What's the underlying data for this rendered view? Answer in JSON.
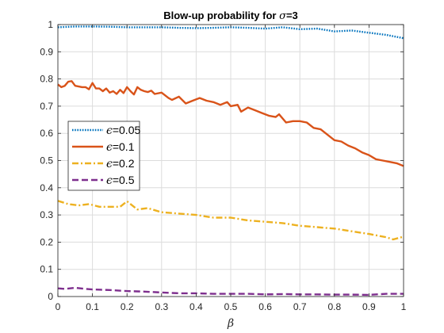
{
  "chart_data": {
    "type": "line",
    "title": {
      "prefix": "Blow-up probability for ",
      "symbol": "σ",
      "suffix": "=3"
    },
    "xlabel": "β",
    "ylabel": "",
    "xlim": [
      0,
      1
    ],
    "ylim": [
      0,
      1
    ],
    "x_ticks": [
      "0",
      "0.1",
      "0.2",
      "0.3",
      "0.4",
      "0.5",
      "0.6",
      "0.7",
      "0.8",
      "0.9",
      "1"
    ],
    "y_ticks": [
      "0",
      "0.1",
      "0.2",
      "0.3",
      "0.4",
      "0.5",
      "0.6",
      "0.7",
      "0.8",
      "0.9",
      "1"
    ],
    "grid": true,
    "legend_position": "left",
    "series": [
      {
        "name": "ϵ=0.05",
        "symbol": "ϵ",
        "value_label": "=0.05",
        "color": "#0072BD",
        "style": "dotted",
        "points": [
          [
            0,
            0.99
          ],
          [
            0.05,
            0.993
          ],
          [
            0.1,
            0.993
          ],
          [
            0.15,
            0.992
          ],
          [
            0.2,
            0.99
          ],
          [
            0.25,
            0.99
          ],
          [
            0.3,
            0.99
          ],
          [
            0.35,
            0.988
          ],
          [
            0.4,
            0.987
          ],
          [
            0.45,
            0.988
          ],
          [
            0.5,
            0.99
          ],
          [
            0.55,
            0.988
          ],
          [
            0.6,
            0.985
          ],
          [
            0.65,
            0.99
          ],
          [
            0.7,
            0.983
          ],
          [
            0.75,
            0.985
          ],
          [
            0.8,
            0.975
          ],
          [
            0.85,
            0.978
          ],
          [
            0.9,
            0.97
          ],
          [
            0.95,
            0.962
          ],
          [
            1,
            0.95
          ]
        ]
      },
      {
        "name": "ϵ=0.1",
        "symbol": "ϵ",
        "value_label": "=0.1",
        "color": "#D95319",
        "style": "solid",
        "points": [
          [
            0,
            0.78
          ],
          [
            0.01,
            0.77
          ],
          [
            0.02,
            0.775
          ],
          [
            0.03,
            0.79
          ],
          [
            0.04,
            0.792
          ],
          [
            0.05,
            0.775
          ],
          [
            0.07,
            0.77
          ],
          [
            0.08,
            0.77
          ],
          [
            0.09,
            0.762
          ],
          [
            0.1,
            0.785
          ],
          [
            0.11,
            0.765
          ],
          [
            0.12,
            0.765
          ],
          [
            0.13,
            0.755
          ],
          [
            0.14,
            0.765
          ],
          [
            0.15,
            0.75
          ],
          [
            0.16,
            0.755
          ],
          [
            0.17,
            0.745
          ],
          [
            0.18,
            0.76
          ],
          [
            0.19,
            0.748
          ],
          [
            0.2,
            0.77
          ],
          [
            0.21,
            0.755
          ],
          [
            0.22,
            0.743
          ],
          [
            0.23,
            0.77
          ],
          [
            0.24,
            0.76
          ],
          [
            0.25,
            0.755
          ],
          [
            0.26,
            0.752
          ],
          [
            0.27,
            0.757
          ],
          [
            0.28,
            0.745
          ],
          [
            0.3,
            0.75
          ],
          [
            0.32,
            0.73
          ],
          [
            0.33,
            0.723
          ],
          [
            0.35,
            0.735
          ],
          [
            0.37,
            0.71
          ],
          [
            0.39,
            0.72
          ],
          [
            0.41,
            0.73
          ],
          [
            0.43,
            0.72
          ],
          [
            0.45,
            0.715
          ],
          [
            0.47,
            0.705
          ],
          [
            0.49,
            0.715
          ],
          [
            0.5,
            0.7
          ],
          [
            0.52,
            0.705
          ],
          [
            0.53,
            0.68
          ],
          [
            0.55,
            0.695
          ],
          [
            0.57,
            0.685
          ],
          [
            0.59,
            0.675
          ],
          [
            0.61,
            0.665
          ],
          [
            0.63,
            0.66
          ],
          [
            0.64,
            0.67
          ],
          [
            0.66,
            0.64
          ],
          [
            0.68,
            0.645
          ],
          [
            0.7,
            0.645
          ],
          [
            0.72,
            0.64
          ],
          [
            0.74,
            0.62
          ],
          [
            0.76,
            0.615
          ],
          [
            0.78,
            0.595
          ],
          [
            0.8,
            0.575
          ],
          [
            0.82,
            0.57
          ],
          [
            0.84,
            0.555
          ],
          [
            0.86,
            0.545
          ],
          [
            0.88,
            0.53
          ],
          [
            0.9,
            0.52
          ],
          [
            0.92,
            0.505
          ],
          [
            0.94,
            0.5
          ],
          [
            0.96,
            0.495
          ],
          [
            0.98,
            0.49
          ],
          [
            1,
            0.48
          ]
        ]
      },
      {
        "name": "ϵ=0.2",
        "symbol": "ϵ",
        "value_label": "=0.2",
        "color": "#EDB120",
        "style": "dashdot",
        "points": [
          [
            0,
            0.352
          ],
          [
            0.03,
            0.34
          ],
          [
            0.06,
            0.335
          ],
          [
            0.09,
            0.34
          ],
          [
            0.12,
            0.33
          ],
          [
            0.15,
            0.33
          ],
          [
            0.18,
            0.33
          ],
          [
            0.2,
            0.35
          ],
          [
            0.23,
            0.32
          ],
          [
            0.26,
            0.325
          ],
          [
            0.3,
            0.31
          ],
          [
            0.35,
            0.305
          ],
          [
            0.4,
            0.3
          ],
          [
            0.45,
            0.29
          ],
          [
            0.5,
            0.29
          ],
          [
            0.55,
            0.28
          ],
          [
            0.6,
            0.275
          ],
          [
            0.65,
            0.27
          ],
          [
            0.7,
            0.26
          ],
          [
            0.75,
            0.255
          ],
          [
            0.8,
            0.25
          ],
          [
            0.85,
            0.24
          ],
          [
            0.9,
            0.23
          ],
          [
            0.95,
            0.218
          ],
          [
            0.97,
            0.21
          ],
          [
            1,
            0.22
          ]
        ]
      },
      {
        "name": "ϵ=0.5",
        "symbol": "ϵ",
        "value_label": "=0.5",
        "color": "#7E2F8E",
        "style": "dashed",
        "points": [
          [
            0,
            0.03
          ],
          [
            0.02,
            0.028
          ],
          [
            0.05,
            0.032
          ],
          [
            0.08,
            0.028
          ],
          [
            0.1,
            0.026
          ],
          [
            0.15,
            0.024
          ],
          [
            0.2,
            0.02
          ],
          [
            0.25,
            0.018
          ],
          [
            0.3,
            0.015
          ],
          [
            0.35,
            0.012
          ],
          [
            0.4,
            0.012
          ],
          [
            0.45,
            0.01
          ],
          [
            0.5,
            0.01
          ],
          [
            0.55,
            0.01
          ],
          [
            0.6,
            0.008
          ],
          [
            0.65,
            0.009
          ],
          [
            0.7,
            0.008
          ],
          [
            0.75,
            0.008
          ],
          [
            0.8,
            0.007
          ],
          [
            0.85,
            0.007
          ],
          [
            0.9,
            0.006
          ],
          [
            0.95,
            0.01
          ],
          [
            1,
            0.01
          ]
        ]
      }
    ]
  }
}
